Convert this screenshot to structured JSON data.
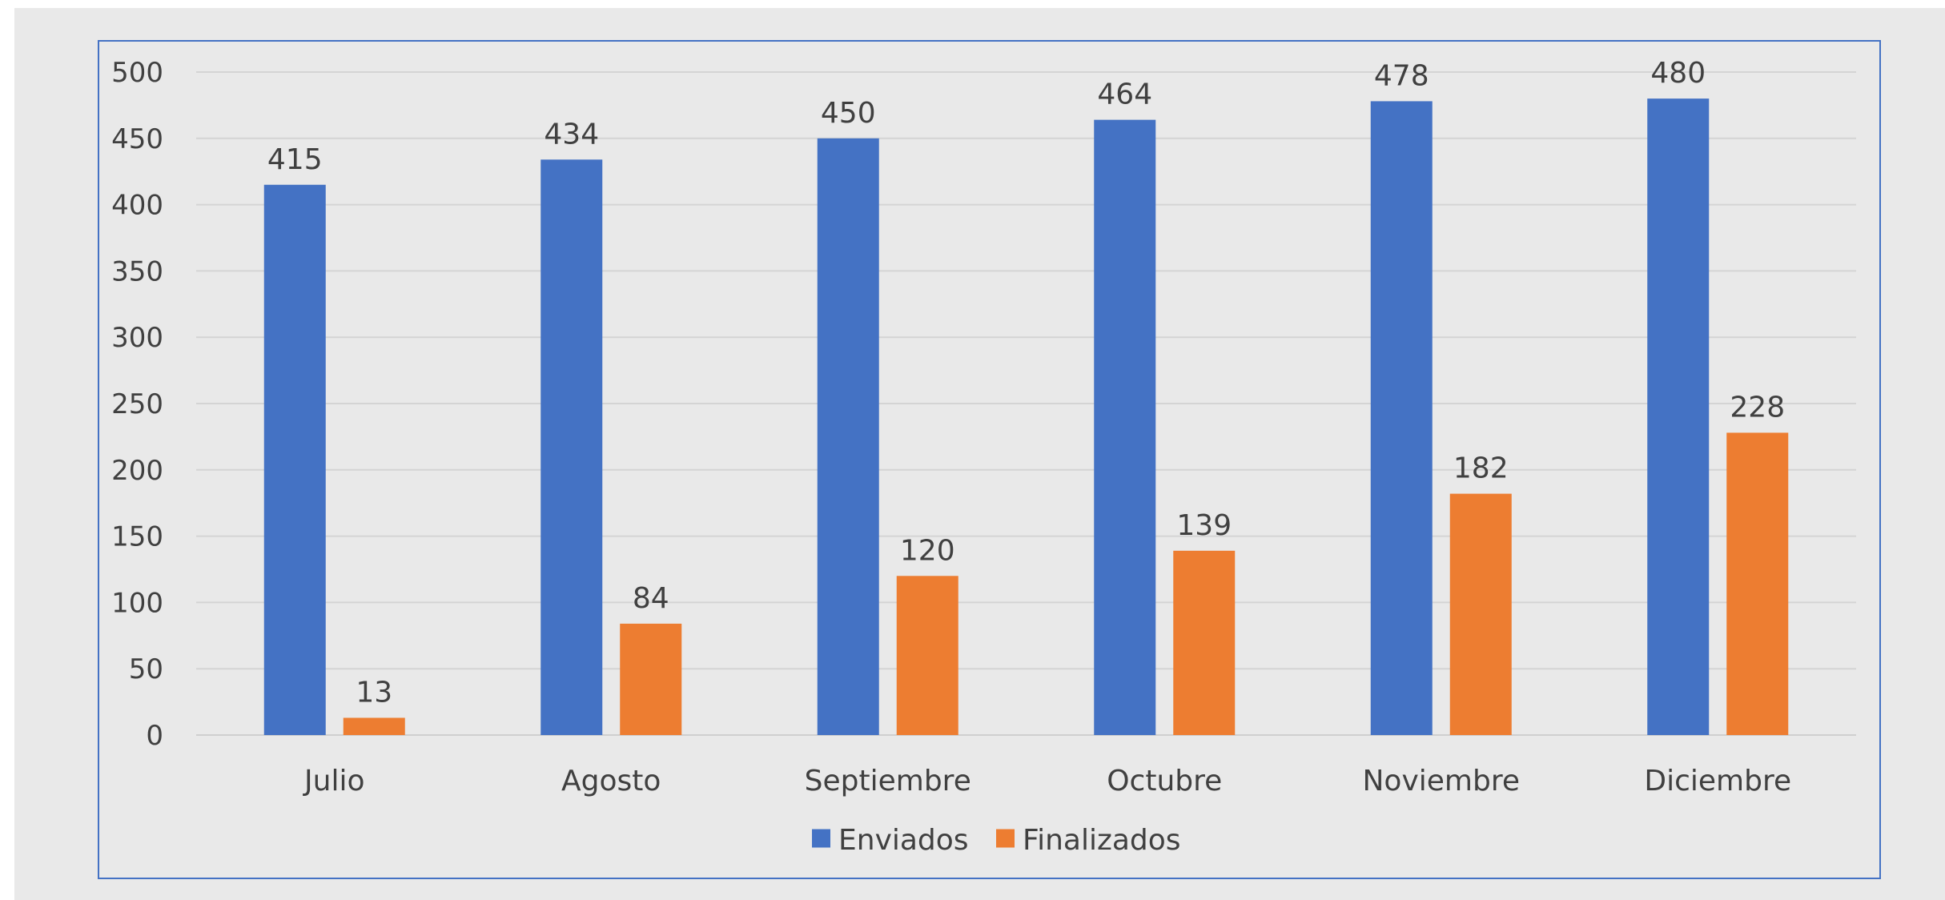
{
  "chart_data": {
    "type": "bar",
    "title": "",
    "xlabel": "",
    "ylabel": "",
    "categories": [
      "Julio",
      "Agosto",
      "Septiembre",
      "Octubre",
      "Noviembre",
      "Diciembre"
    ],
    "series": [
      {
        "name": "Enviados",
        "color": "#4472c4",
        "values": [
          415,
          434,
          450,
          464,
          478,
          480
        ]
      },
      {
        "name": "Finalizados",
        "color": "#ed7d31",
        "values": [
          13,
          84,
          120,
          139,
          182,
          228
        ]
      }
    ],
    "ylim": [
      0,
      500
    ],
    "yticks": [
      0,
      50,
      100,
      150,
      200,
      250,
      300,
      350,
      400,
      450,
      500
    ],
    "grid": true,
    "legend": "bottom-center",
    "data_labels": true
  }
}
